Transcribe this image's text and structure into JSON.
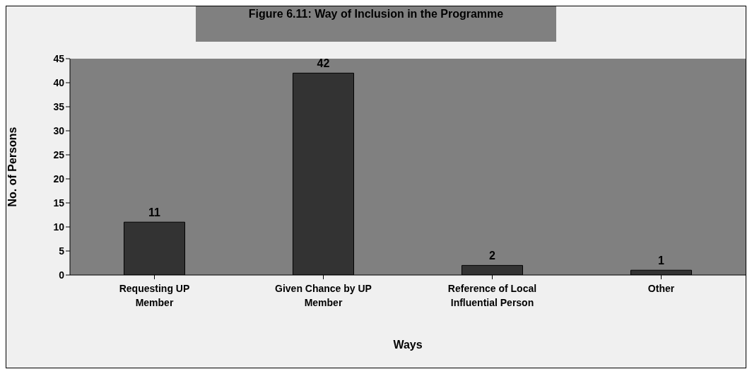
{
  "chart_data": {
    "type": "bar",
    "title": "Figure 6.11: Way of Inclusion in the Programme",
    "xlabel": "Ways",
    "ylabel": "No. of Persons",
    "categories": [
      "Requesting UP Member",
      "Given Chance by UP Member",
      "Reference of Local Influential Person",
      "Other"
    ],
    "values": [
      11,
      42,
      2,
      1
    ],
    "color": "#333333",
    "ylim": [
      0,
      45
    ],
    "yticks": [
      0,
      5,
      10,
      15,
      20,
      25,
      30,
      35,
      40,
      45
    ],
    "grid": false,
    "data_labels": true
  }
}
